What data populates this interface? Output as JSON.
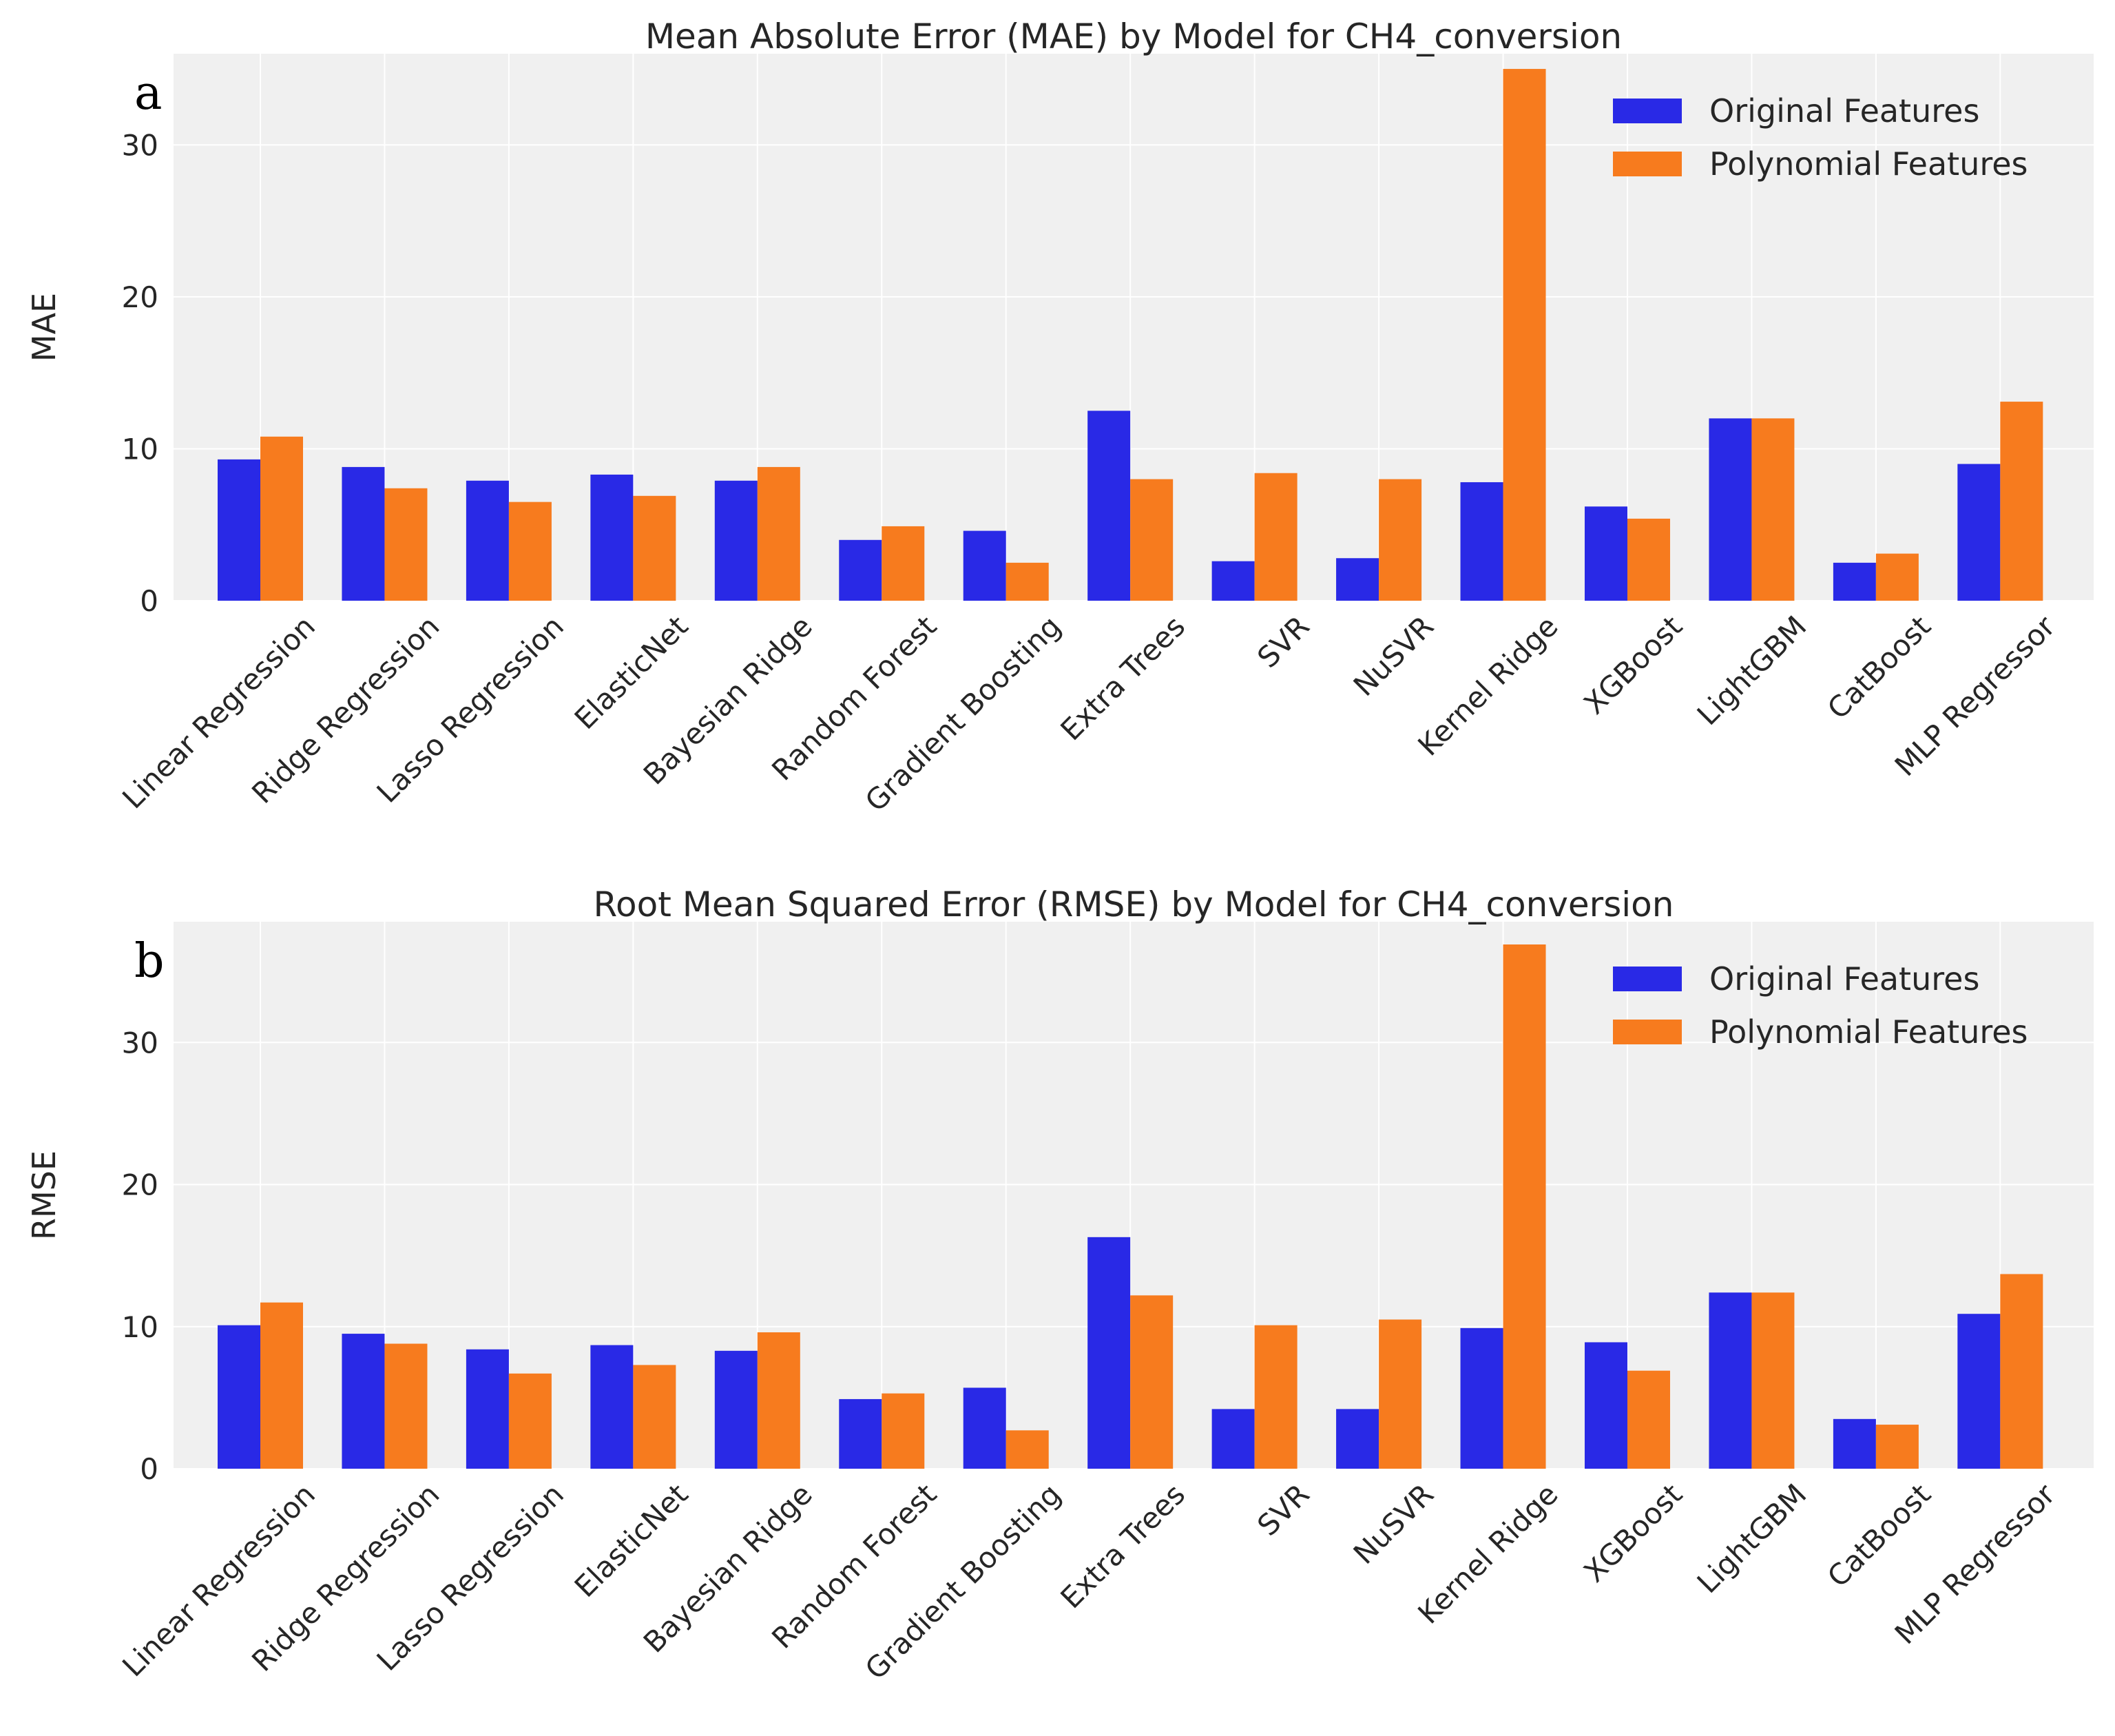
{
  "colors": {
    "original": "#2929E6",
    "polynomial": "#F77B1E",
    "plot_bg": "#F0F0F0",
    "grid": "#FFFFFF"
  },
  "chart_data": [
    {
      "panel": "a",
      "type": "bar",
      "title": "Mean Absolute Error (MAE) by Model for CH4_conversion",
      "xlabel": "",
      "ylabel": "MAE",
      "ylim": [
        0,
        36
      ],
      "yticks": [
        "0",
        "10",
        "20",
        "30"
      ],
      "legend_position": "top-right",
      "categories": [
        "Linear Regression",
        "Ridge Regression",
        "Lasso Regression",
        "ElasticNet",
        "Bayesian Ridge",
        "Random Forest",
        "Gradient Boosting",
        "Extra Trees",
        "SVR",
        "NuSVR",
        "Kernel Ridge",
        "XGBoost",
        "LightGBM",
        "CatBoost",
        "MLP Regressor"
      ],
      "series": [
        {
          "name": "Original Features",
          "values": [
            9.3,
            8.8,
            7.9,
            8.3,
            7.9,
            4.0,
            4.6,
            12.5,
            2.6,
            2.8,
            7.8,
            6.2,
            12.0,
            2.5,
            9.0
          ]
        },
        {
          "name": "Polynomial Features",
          "values": [
            10.8,
            7.4,
            6.5,
            6.9,
            8.8,
            4.9,
            2.5,
            8.0,
            8.4,
            8.0,
            35.0,
            5.4,
            12.0,
            3.1,
            13.1
          ]
        }
      ]
    },
    {
      "panel": "b",
      "type": "bar",
      "title": "Root Mean Squared Error (RMSE) by Model for CH4_conversion",
      "xlabel": "",
      "ylabel": "RMSE",
      "ylim": [
        0,
        38.5
      ],
      "yticks": [
        "0",
        "10",
        "20",
        "30"
      ],
      "legend_position": "top-right",
      "categories": [
        "Linear Regression",
        "Ridge Regression",
        "Lasso Regression",
        "ElasticNet",
        "Bayesian Ridge",
        "Random Forest",
        "Gradient Boosting",
        "Extra Trees",
        "SVR",
        "NuSVR",
        "Kernel Ridge",
        "XGBoost",
        "LightGBM",
        "CatBoost",
        "MLP Regressor"
      ],
      "series": [
        {
          "name": "Original Features",
          "values": [
            10.1,
            9.5,
            8.4,
            8.7,
            8.3,
            4.9,
            5.7,
            16.3,
            4.2,
            4.2,
            9.9,
            8.9,
            12.4,
            3.5,
            10.9
          ]
        },
        {
          "name": "Polynomial Features",
          "values": [
            11.7,
            8.8,
            6.7,
            7.3,
            9.6,
            5.3,
            2.7,
            12.2,
            10.1,
            10.5,
            36.9,
            6.9,
            12.4,
            3.1,
            13.7
          ]
        }
      ]
    }
  ]
}
